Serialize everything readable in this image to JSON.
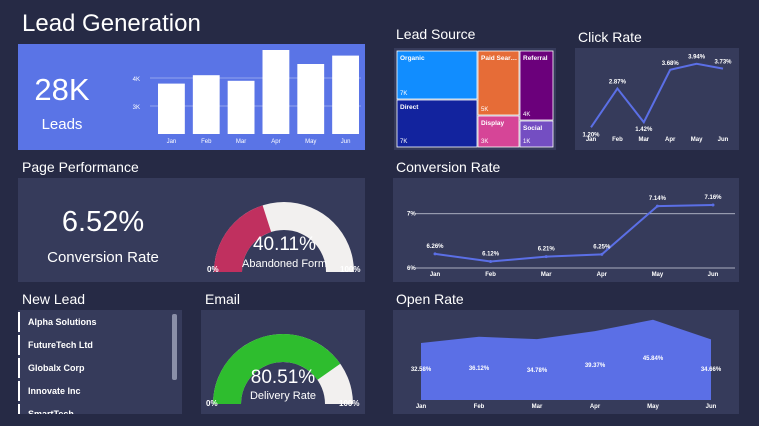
{
  "title": "Lead Generation",
  "leads_card": {
    "value": "28K",
    "label": "Leads",
    "chart_data": {
      "type": "bar",
      "categories": [
        "Jan",
        "Feb",
        "Mar",
        "Apr",
        "May",
        "Jun"
      ],
      "values": [
        3.8,
        4.1,
        3.9,
        5.0,
        4.5,
        4.8
      ],
      "yticks": [
        "3K",
        "4K"
      ],
      "ytick_values": [
        3,
        4
      ],
      "ylim": [
        2,
        5
      ]
    }
  },
  "lead_source": {
    "title": "Lead Source",
    "chart_data": {
      "type": "treemap",
      "items": [
        {
          "label": "Organic",
          "value": "7K",
          "color": "#118dff"
        },
        {
          "label": "Direct",
          "value": "7K",
          "color": "#12239e"
        },
        {
          "label": "Paid Sear…",
          "value": "5K",
          "color": "#e66c37"
        },
        {
          "label": "Display",
          "value": "3K",
          "color": "#d64597"
        },
        {
          "label": "Referral",
          "value": "4K",
          "color": "#6b007b"
        },
        {
          "label": "Social",
          "value": "1K",
          "color": "#744ec2"
        }
      ]
    }
  },
  "click_rate": {
    "title": "Click Rate",
    "chart_data": {
      "type": "line",
      "categories": [
        "Jan",
        "Feb",
        "Mar",
        "Apr",
        "May",
        "Jun"
      ],
      "values": [
        1.2,
        2.87,
        1.42,
        3.68,
        3.94,
        3.73
      ],
      "labels": [
        "1.20%",
        "2.87%",
        "1.42%",
        "3.68%",
        "3.94%",
        "3.73%"
      ],
      "ylim": [
        1.0,
        4.1
      ],
      "color": "#5b6fe6"
    }
  },
  "page_performance": {
    "title": "Page Performance",
    "conversion_value": "6.52%",
    "conversion_label": "Conversion Rate",
    "gauge": {
      "value": 40.11,
      "value_label": "40.11%",
      "label": "Abandoned Form",
      "min_label": "0%",
      "max_label": "100%",
      "color": "#c0305f"
    }
  },
  "conversion_rate": {
    "title": "Conversion Rate",
    "chart_data": {
      "type": "line",
      "categories": [
        "Jan",
        "Feb",
        "Mar",
        "Apr",
        "May",
        "Jun"
      ],
      "values": [
        6.26,
        6.12,
        6.21,
        6.25,
        7.14,
        7.16
      ],
      "labels": [
        "6.26%",
        "6.12%",
        "6.21%",
        "6.25%",
        "7.14%",
        "7.16%"
      ],
      "yticks": [
        "6%",
        "7%"
      ],
      "ytick_values": [
        6,
        7
      ],
      "ylim": [
        6,
        7.4
      ],
      "color": "#5b6fe6"
    }
  },
  "new_lead": {
    "title": "New Lead",
    "items": [
      "Alpha Solutions",
      "FutureTech Ltd",
      "Globalx Corp",
      "Innovate Inc",
      "SmartTech"
    ]
  },
  "email": {
    "title": "Email",
    "gauge": {
      "value": 80.51,
      "value_label": "80.51%",
      "label": "Delivery Rate",
      "min_label": "0%",
      "max_label": "100%",
      "color": "#2ebd2e"
    }
  },
  "open_rate": {
    "title": "Open Rate",
    "chart_data": {
      "type": "area",
      "categories": [
        "Jan",
        "Feb",
        "Mar",
        "Apr",
        "May",
        "Jun"
      ],
      "values": [
        32.58,
        36.12,
        34.78,
        39.37,
        45.84,
        34.66
      ],
      "labels": [
        "32.58%",
        "36.12%",
        "34.78%",
        "39.37%",
        "45.84%",
        "34.66%"
      ],
      "ylim": [
        0,
        48
      ],
      "color": "#5b6fe6"
    }
  }
}
